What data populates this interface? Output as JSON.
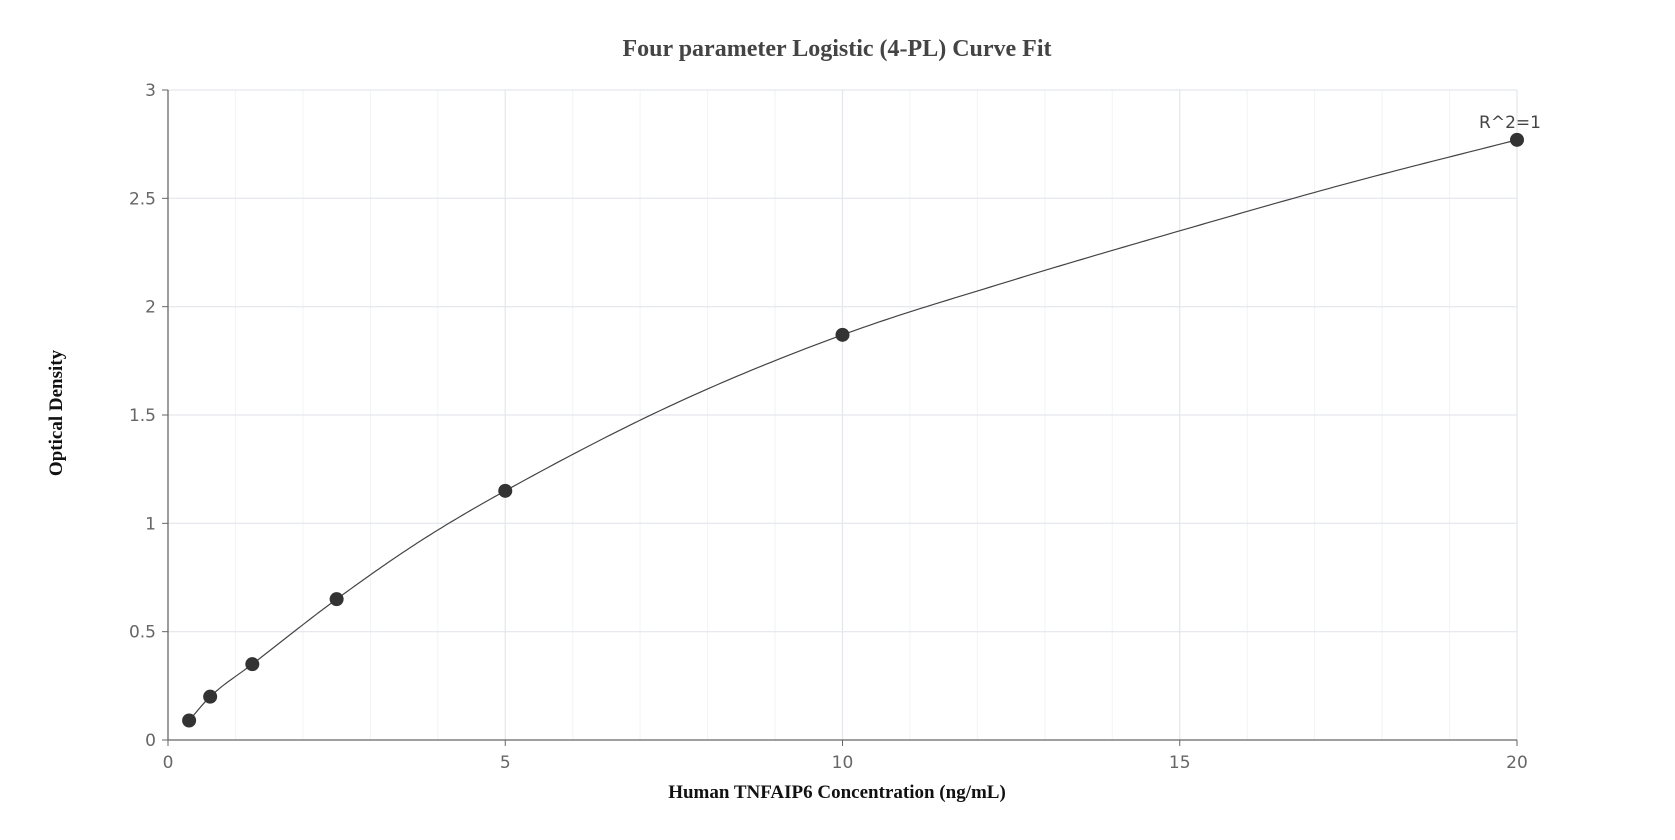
{
  "chart_data": {
    "type": "scatter",
    "title": "Four parameter Logistic (4-PL) Curve Fit",
    "xlabel": "Human TNFAIP6 Concentration (ng/mL)",
    "ylabel": "Optical Density",
    "xlim": [
      0,
      20
    ],
    "ylim": [
      0,
      3
    ],
    "x_ticks": [
      0,
      5,
      10,
      15,
      20
    ],
    "y_ticks": [
      0,
      0.5,
      1,
      1.5,
      2,
      2.5,
      3
    ],
    "x_tick_labels": [
      "0",
      "5",
      "10",
      "15",
      "20"
    ],
    "y_tick_labels": [
      "0",
      "0.5",
      "1",
      "1.5",
      "2",
      "2.5",
      "3"
    ],
    "grid": true,
    "series": [
      {
        "points": [
          {
            "x": 0.313,
            "y": 0.09
          },
          {
            "x": 0.625,
            "y": 0.2
          },
          {
            "x": 1.25,
            "y": 0.35
          },
          {
            "x": 2.5,
            "y": 0.65
          },
          {
            "x": 5,
            "y": 1.15
          },
          {
            "x": 10,
            "y": 1.87
          },
          {
            "x": 20,
            "y": 2.77
          }
        ]
      }
    ],
    "fit_curve": {
      "model": "4-PL",
      "x": [
        0.313,
        0.625,
        1.25,
        2.5,
        3.75,
        5,
        7.5,
        10,
        12.5,
        15,
        17.5,
        20
      ],
      "y": [
        0.09,
        0.2,
        0.35,
        0.65,
        0.92,
        1.15,
        1.55,
        1.87,
        2.12,
        2.35,
        2.57,
        2.77
      ]
    },
    "annotation": "R^2=1",
    "colors": {
      "point": "#333333",
      "curve": "#444444",
      "grid_major": "#e3e6ec",
      "grid_minor": "#f1f3f6",
      "axis": "#666666"
    }
  }
}
